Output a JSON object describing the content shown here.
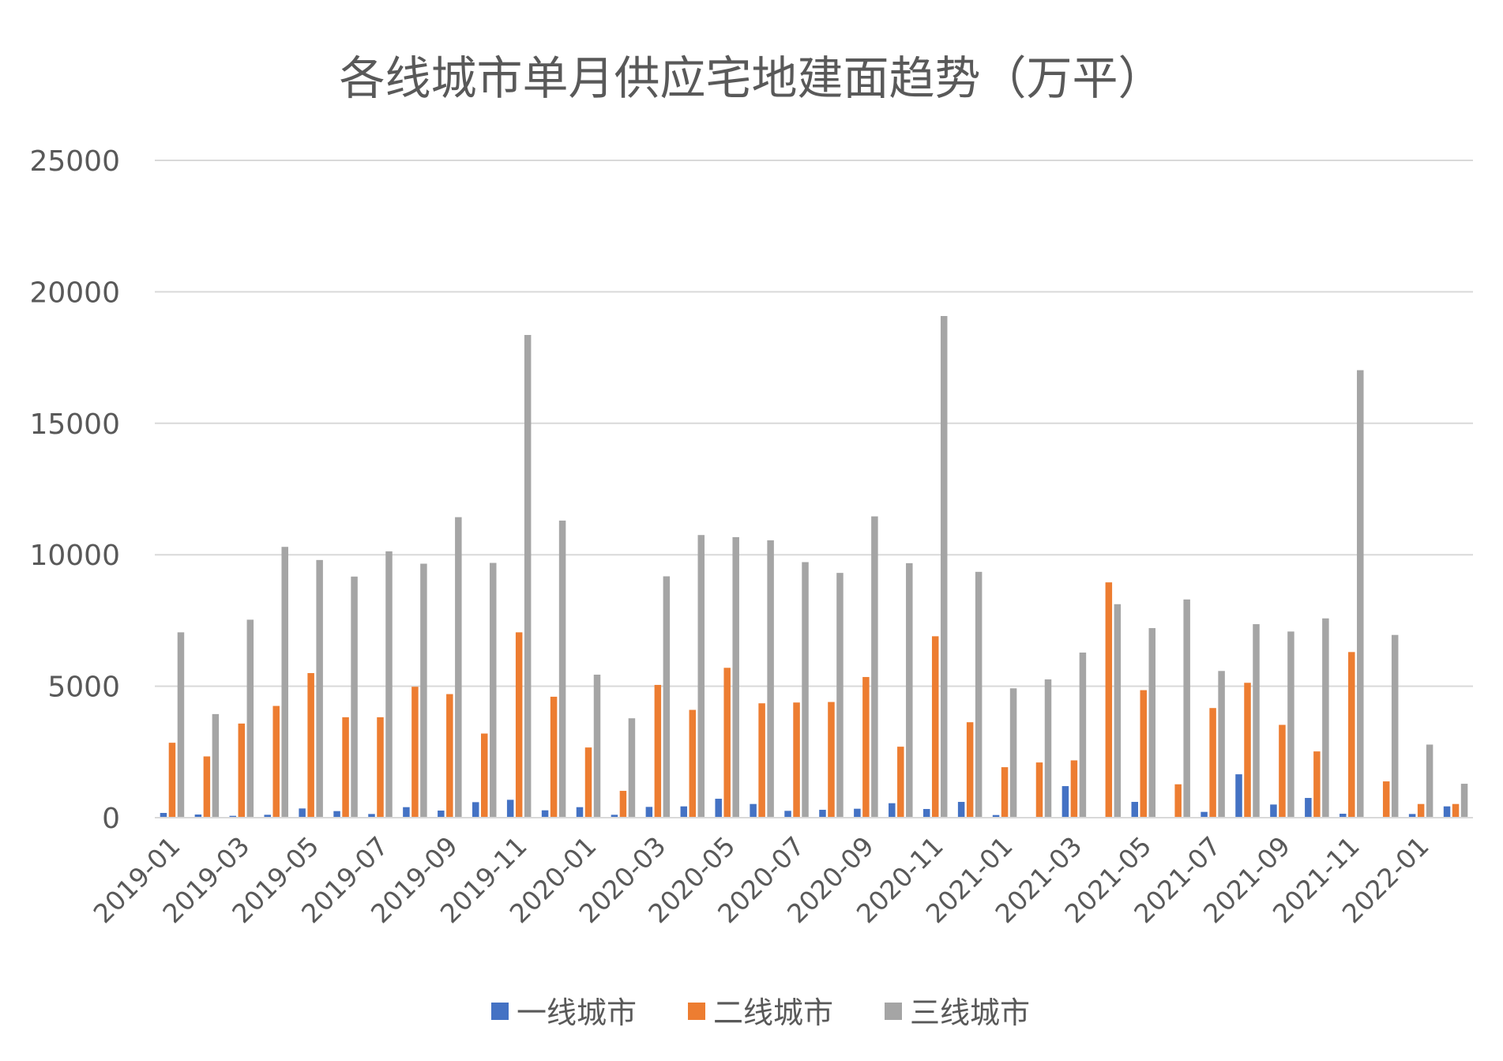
{
  "chart_data": {
    "type": "bar",
    "title": "各线城市单月供应宅地建面趋势（万平）",
    "xlabel": "",
    "ylabel": "",
    "ylim": [
      0,
      25000
    ],
    "yticks": [
      0,
      5000,
      10000,
      15000,
      20000,
      25000
    ],
    "grid": true,
    "legend_position": "bottom",
    "categories": [
      "2019-01",
      "2019-02",
      "2019-03",
      "2019-04",
      "2019-05",
      "2019-06",
      "2019-07",
      "2019-08",
      "2019-09",
      "2019-10",
      "2019-11",
      "2019-12",
      "2020-01",
      "2020-02",
      "2020-03",
      "2020-04",
      "2020-05",
      "2020-06",
      "2020-07",
      "2020-08",
      "2020-09",
      "2020-10",
      "2020-11",
      "2020-12",
      "2021-01",
      "2021-02",
      "2021-03",
      "2021-04",
      "2021-05",
      "2021-06",
      "2021-07",
      "2021-08",
      "2021-09",
      "2021-10",
      "2021-11",
      "2021-12",
      "2022-01",
      "2022-02"
    ],
    "tick_labels": [
      "2019-01",
      "2019-03",
      "2019-05",
      "2019-07",
      "2019-09",
      "2019-11",
      "2020-01",
      "2020-03",
      "2020-05",
      "2020-07",
      "2020-09",
      "2020-11",
      "2021-01",
      "2021-03",
      "2021-05",
      "2021-07",
      "2021-09",
      "2021-11",
      "2022-01"
    ],
    "series": [
      {
        "name": "一线城市",
        "color": "#4472C4",
        "values": [
          180,
          120,
          70,
          110,
          350,
          250,
          140,
          400,
          270,
          590,
          680,
          280,
          400,
          110,
          410,
          430,
          720,
          520,
          260,
          300,
          340,
          550,
          330,
          600,
          100,
          0,
          1200,
          0,
          600,
          0,
          220,
          1650,
          500,
          750,
          150,
          0,
          140,
          430
        ]
      },
      {
        "name": "二线城市",
        "color": "#ED7D31",
        "values": [
          2850,
          2330,
          3580,
          4250,
          5500,
          3820,
          3820,
          4980,
          4700,
          3200,
          7050,
          4600,
          2670,
          1020,
          5050,
          4100,
          5700,
          4350,
          4380,
          4400,
          5350,
          2700,
          6900,
          3630,
          1920,
          2100,
          2180,
          8950,
          4850,
          1270,
          4170,
          5130,
          3530,
          2520,
          6300,
          1380,
          520,
          520
        ]
      },
      {
        "name": "三线城市",
        "color": "#A5A5A5",
        "values": [
          7050,
          3940,
          7530,
          10300,
          9800,
          9170,
          10130,
          9660,
          11430,
          9690,
          18360,
          11300,
          5440,
          3780,
          9180,
          10750,
          10670,
          10550,
          9720,
          9310,
          11460,
          9680,
          19080,
          9350,
          4920,
          5260,
          6280,
          8120,
          7210,
          8300,
          5580,
          7360,
          7080,
          7580,
          17020,
          6950,
          2780,
          1290
        ]
      }
    ]
  }
}
